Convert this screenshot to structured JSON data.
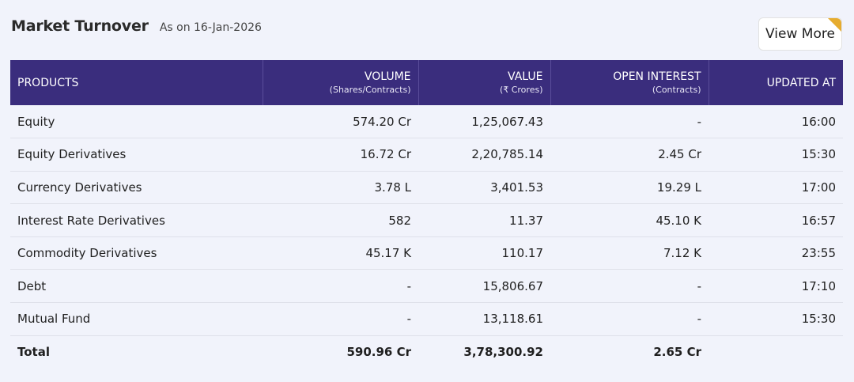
{
  "header": {
    "title": "Market Turnover",
    "as_on": "As on 16-Jan-2026",
    "view_more_label": "View More"
  },
  "table": {
    "columns": [
      {
        "label": "PRODUCTS",
        "sub": ""
      },
      {
        "label": "VOLUME",
        "sub": "(Shares/Contracts)"
      },
      {
        "label": "VALUE",
        "sub": "(₹ Crores)"
      },
      {
        "label": "OPEN INTEREST",
        "sub": "(Contracts)"
      },
      {
        "label": "UPDATED AT",
        "sub": ""
      }
    ],
    "rows": [
      [
        "Equity",
        "574.20 Cr",
        "1,25,067.43",
        "-",
        "16:00"
      ],
      [
        "Equity Derivatives",
        "16.72 Cr",
        "2,20,785.14",
        "2.45 Cr",
        "15:30"
      ],
      [
        "Currency Derivatives",
        "3.78 L",
        "3,401.53",
        "19.29 L",
        "17:00"
      ],
      [
        "Interest Rate Derivatives",
        "582",
        "11.37",
        "45.10 K",
        "16:57"
      ],
      [
        "Commodity Derivatives",
        "45.17 K",
        "110.17",
        "7.12 K",
        "23:55"
      ],
      [
        "Debt",
        "-",
        "15,806.67",
        "-",
        "17:10"
      ],
      [
        "Mutual Fund",
        "-",
        "13,118.61",
        "-",
        "15:30"
      ]
    ],
    "total": [
      "Total",
      "590.96 Cr",
      "3,78,300.92",
      "2.65 Cr",
      ""
    ]
  },
  "colors": {
    "header_bg": "#3a2d7d",
    "page_bg": "#f1f3fb",
    "accent_corner": "#e6ac2f"
  }
}
